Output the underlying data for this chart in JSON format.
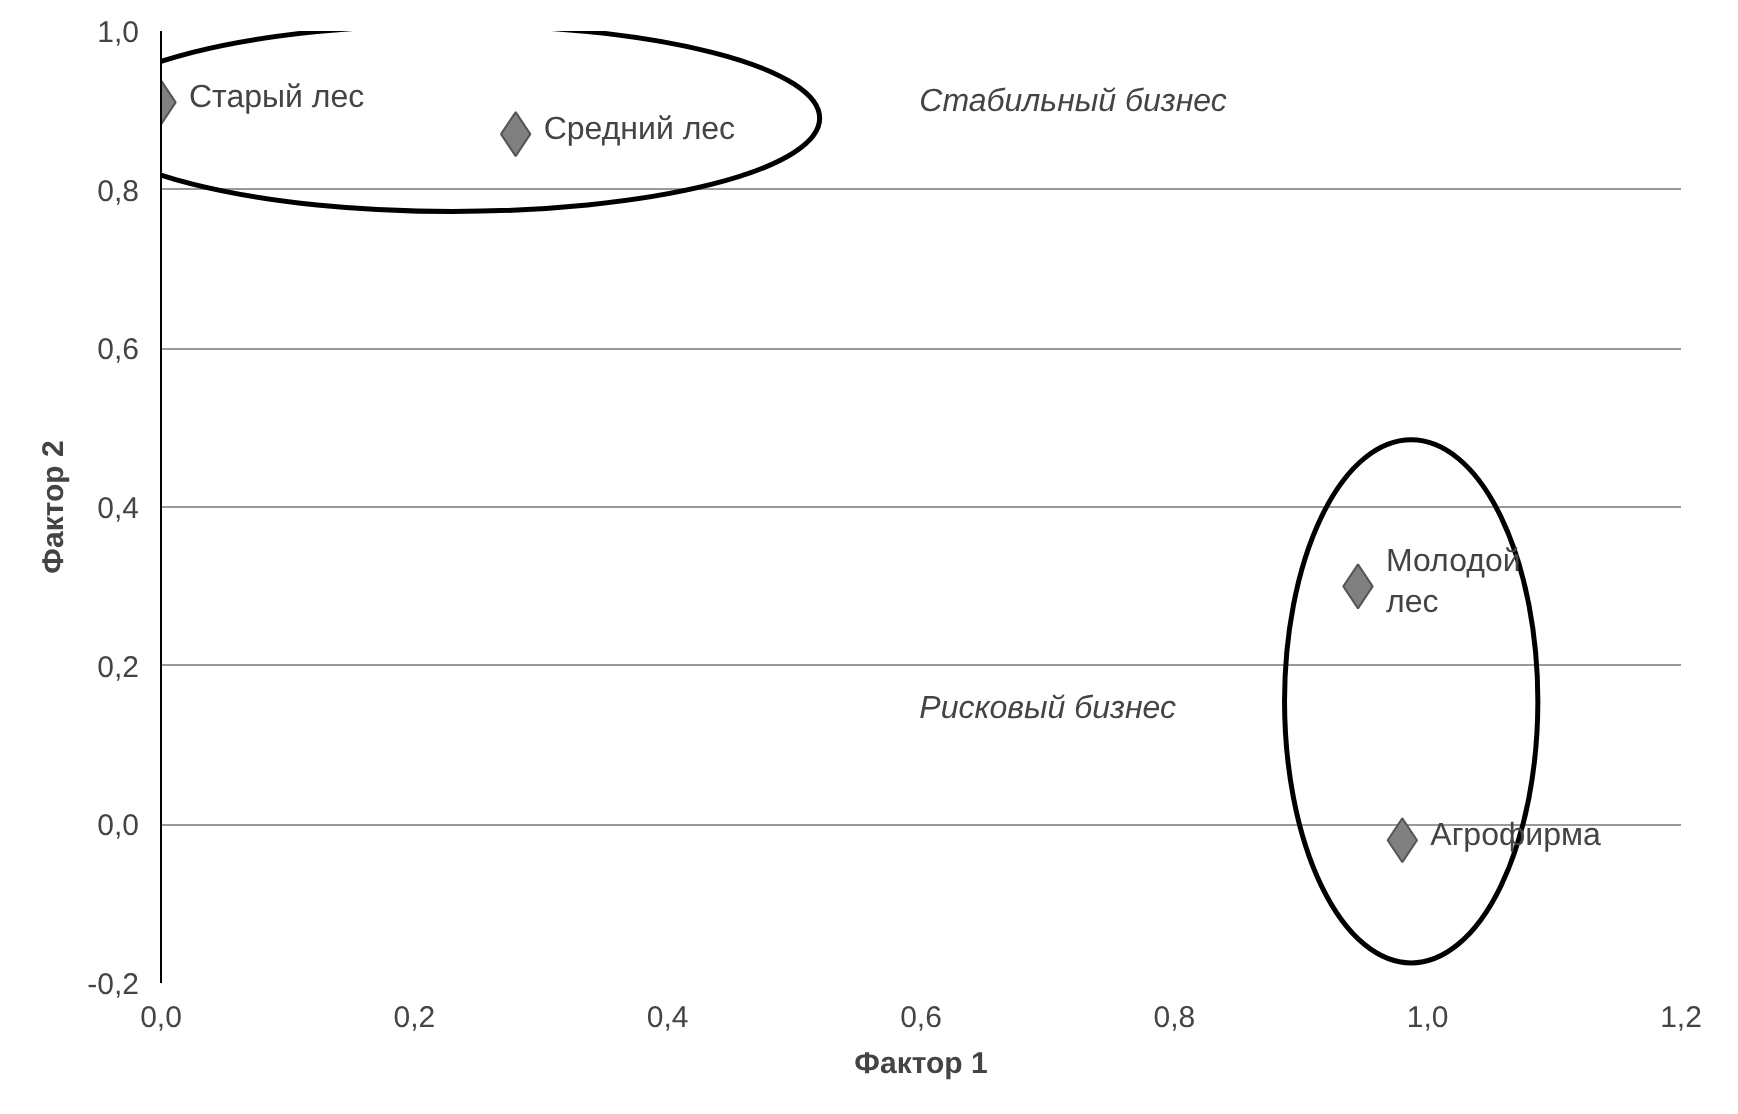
{
  "chart_data": {
    "type": "scatter",
    "xlabel": "Фактор 1",
    "ylabel": "Фактор 2",
    "xlim": [
      0,
      1.2
    ],
    "ylim": [
      -0.2,
      1.0
    ],
    "xticks": [
      {
        "value": 0,
        "label": "0,0"
      },
      {
        "value": 0.2,
        "label": "0,2"
      },
      {
        "value": 0.4,
        "label": "0,4"
      },
      {
        "value": 0.6,
        "label": "0,6"
      },
      {
        "value": 0.8,
        "label": "0,8"
      },
      {
        "value": 1.0,
        "label": "1,0"
      },
      {
        "value": 1.2,
        "label": "1,2"
      }
    ],
    "yticks": [
      {
        "value": -0.2,
        "label": "-0,2"
      },
      {
        "value": 0,
        "label": "0,0"
      },
      {
        "value": 0.2,
        "label": "0,2"
      },
      {
        "value": 0.4,
        "label": "0,4"
      },
      {
        "value": 0.6,
        "label": "0,6"
      },
      {
        "value": 0.8,
        "label": "0,8"
      },
      {
        "value": 1.0,
        "label": "1,0"
      }
    ],
    "grid": "y",
    "marker": "diamond",
    "series": [
      {
        "name": "Старый лес",
        "color": "#808080",
        "x": [
          0.0
        ],
        "values": [
          0.91
        ]
      },
      {
        "name": "Средний лес",
        "color": "#808080",
        "x": [
          0.28
        ],
        "values": [
          0.87
        ]
      },
      {
        "name": "Молодой\nлес",
        "color": "#808080",
        "x": [
          0.945
        ],
        "values": [
          0.3
        ]
      },
      {
        "name": "Агрофирма",
        "color": "#808080",
        "x": [
          0.98
        ],
        "values": [
          -0.02
        ]
      }
    ],
    "annotations": [
      "Стабильный бизнес",
      "Рисковый бизнес"
    ]
  }
}
